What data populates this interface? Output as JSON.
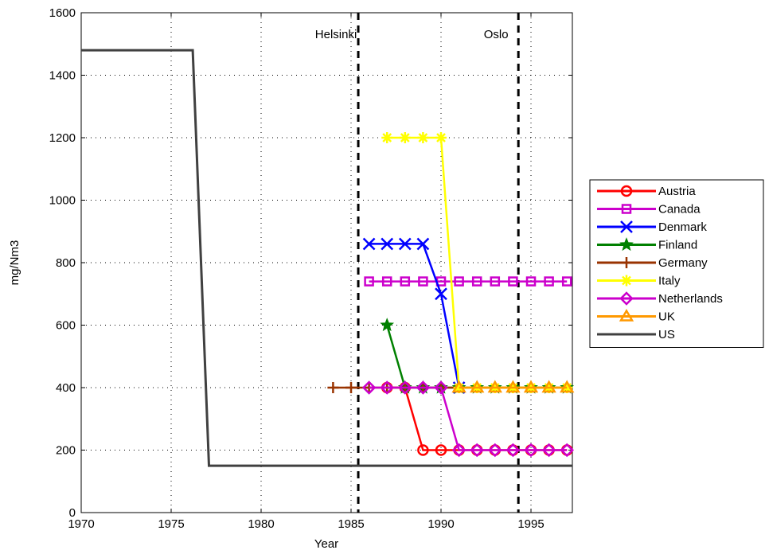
{
  "chart_data": {
    "type": "line",
    "title": "",
    "xlabel": "Year",
    "ylabel": "mg/Nm3",
    "xlim": [
      1970,
      1997.3
    ],
    "ylim": [
      0,
      1600
    ],
    "xticks": [
      1970,
      1975,
      1980,
      1985,
      1990,
      1995
    ],
    "yticks": [
      0,
      200,
      400,
      600,
      800,
      1000,
      1200,
      1400,
      1600
    ],
    "grid": true,
    "legend_position": "right",
    "annotations": [
      {
        "text": "Helsinki",
        "x": 1985.4,
        "kind": "vline"
      },
      {
        "text": "Oslo",
        "x": 1994.3,
        "kind": "vline"
      }
    ],
    "series": [
      {
        "name": "Austria",
        "color": "#ff0000",
        "marker": "circle",
        "x": [
          1987,
          1988,
          1989,
          1990,
          1991,
          1992,
          1993,
          1994,
          1995,
          1996,
          1997
        ],
        "y": [
          400,
          400,
          200,
          200,
          200,
          200,
          200,
          200,
          200,
          200,
          200
        ]
      },
      {
        "name": "Canada",
        "color": "#cc00cc",
        "marker": "square",
        "x": [
          1986,
          1987,
          1988,
          1989,
          1990,
          1991,
          1992,
          1993,
          1994,
          1995,
          1996,
          1997
        ],
        "y": [
          740,
          740,
          740,
          740,
          740,
          740,
          740,
          740,
          740,
          740,
          740,
          740
        ]
      },
      {
        "name": "Denmark",
        "color": "#0000ff",
        "marker": "x",
        "x": [
          1986,
          1987,
          1988,
          1989,
          1990,
          1991
        ],
        "y": [
          860,
          860,
          860,
          860,
          700,
          400
        ]
      },
      {
        "name": "Finland",
        "color": "#008000",
        "marker": "star",
        "x": [
          1987,
          1988,
          1989,
          1990,
          1991,
          1992,
          1993,
          1994,
          1995,
          1996,
          1997
        ],
        "y": [
          600,
          400,
          400,
          400,
          400,
          400,
          400,
          400,
          400,
          400,
          400
        ]
      },
      {
        "name": "Germany",
        "color": "#993300",
        "marker": "plus",
        "x": [
          1984,
          1985,
          1986,
          1987,
          1988,
          1989,
          1990,
          1991,
          1992,
          1993,
          1994,
          1995,
          1996,
          1997
        ],
        "y": [
          400,
          400,
          400,
          400,
          400,
          400,
          400,
          400,
          400,
          400,
          400,
          400,
          400,
          400
        ]
      },
      {
        "name": "Italy",
        "color": "#ffff00",
        "marker": "asterisk",
        "x": [
          1987,
          1988,
          1989,
          1990,
          1991,
          1992,
          1993,
          1994,
          1995,
          1996,
          1997
        ],
        "y": [
          1200,
          1200,
          1200,
          1200,
          400,
          400,
          400,
          400,
          400,
          400,
          400
        ]
      },
      {
        "name": "Netherlands",
        "color": "#cc00cc",
        "marker": "diamond",
        "x": [
          1986,
          1987,
          1988,
          1989,
          1990,
          1991,
          1992,
          1993,
          1994,
          1995,
          1996,
          1997
        ],
        "y": [
          400,
          400,
          400,
          400,
          400,
          200,
          200,
          200,
          200,
          200,
          200,
          200
        ]
      },
      {
        "name": "UK",
        "color": "#ff9900",
        "marker": "triangle",
        "x": [
          1991,
          1992,
          1993,
          1994,
          1995,
          1996,
          1997
        ],
        "y": [
          400,
          400,
          400,
          400,
          400,
          400,
          400
        ]
      },
      {
        "name": "US",
        "color": "#404040",
        "marker": "none",
        "x": [
          1970,
          1976.2,
          1977.1,
          1997.3
        ],
        "y": [
          1480,
          1480,
          150,
          150
        ]
      }
    ]
  }
}
